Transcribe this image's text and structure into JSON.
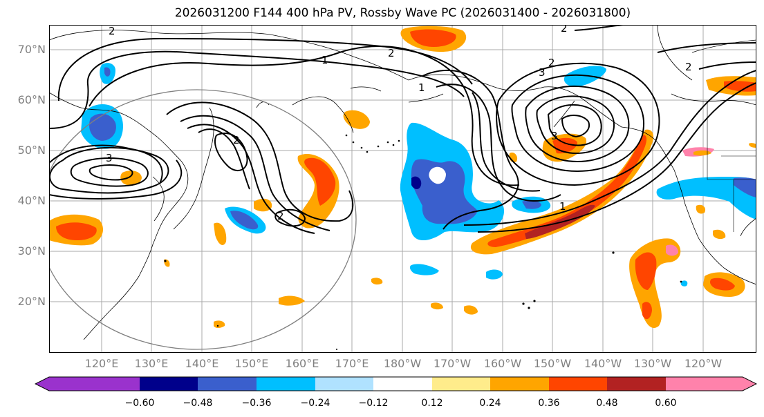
{
  "title": "2026031200 F144 400 hPa PV, Rossby Wave PC (2026031400 - 2026031800)",
  "lat_labels": [
    "70°N",
    "60°N",
    "50°N",
    "40°N",
    "30°N",
    "20°N"
  ],
  "lon_labels": [
    "120°E",
    "130°E",
    "140°E",
    "150°E",
    "160°E",
    "170°E",
    "180°W",
    "170°W",
    "160°W",
    "150°W",
    "140°W",
    "130°W",
    "120°W"
  ],
  "contour_labels": [
    "2",
    "1",
    "2",
    "2",
    "3",
    "2",
    "2",
    "1",
    "2",
    "3",
    "3",
    "2",
    "1"
  ],
  "colorbar": {
    "ticks": [
      "−0.60",
      "−0.48",
      "−0.36",
      "−0.24",
      "−0.12",
      "0.12",
      "0.24",
      "0.36",
      "0.48",
      "0.60"
    ],
    "colors": [
      "#9a32cd",
      "#00008b",
      "#3a5fcd",
      "#00bfff",
      "#b0e2ff",
      "#ffffff",
      "#ffec8b",
      "#ffa500",
      "#ff4500",
      "#b22222",
      "#ff82ab"
    ]
  },
  "colors": {
    "contour": "#000000",
    "grid": "#a9a9a9",
    "coast": "#000000",
    "circle": "#808080"
  }
}
